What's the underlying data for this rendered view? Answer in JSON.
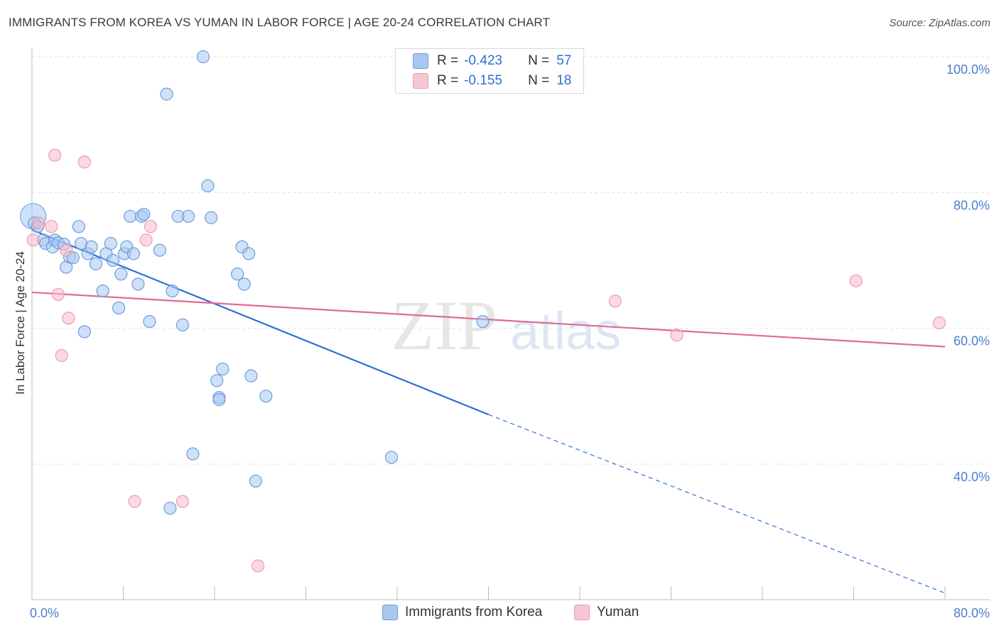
{
  "title": "IMMIGRANTS FROM KOREA VS YUMAN IN LABOR FORCE | AGE 20-24 CORRELATION CHART",
  "source": "Source: ZipAtlas.com",
  "watermark": {
    "zip": "ZIP",
    "atlas": "atlas"
  },
  "legend": {
    "r_label": "R =",
    "n_label": "N =",
    "series": [
      {
        "name": "Immigrants from Korea",
        "r": "-0.423",
        "n": "57",
        "color": "#a8c8f0"
      },
      {
        "name": "Yuman",
        "r": "-0.155",
        "n": "18",
        "color": "#f7b9cb"
      }
    ]
  },
  "chart_data": {
    "type": "scatter",
    "title": "IMMIGRANTS FROM KOREA VS YUMAN IN LABOR FORCE | AGE 20-24 CORRELATION CHART",
    "xlabel": "",
    "ylabel": "In Labor Force | Age 20-24",
    "xlim": [
      0,
      80
    ],
    "ylim": [
      20,
      102
    ],
    "x_tick_labels": [
      "0.0%",
      "80.0%"
    ],
    "y_ticks": [
      40,
      60,
      80,
      100
    ],
    "y_tick_labels": [
      "40.0%",
      "60.0%",
      "80.0%",
      "100.0%"
    ],
    "grid": true,
    "series": [
      {
        "name": "Immigrants from Korea",
        "color": "#4a7fd0",
        "fill": "#a8c8f0",
        "points": [
          [
            0.2,
            75.5
          ],
          [
            0.5,
            75.0
          ],
          [
            1.0,
            73.0
          ],
          [
            1.2,
            72.5
          ],
          [
            1.8,
            72.0
          ],
          [
            2.0,
            73.0
          ],
          [
            2.3,
            72.6
          ],
          [
            2.8,
            72.4
          ],
          [
            3.0,
            69.0
          ],
          [
            3.3,
            70.5
          ],
          [
            3.6,
            70.4
          ],
          [
            4.1,
            75.0
          ],
          [
            4.3,
            72.5
          ],
          [
            4.6,
            59.5
          ],
          [
            4.9,
            71.0
          ],
          [
            5.2,
            72.0
          ],
          [
            5.6,
            69.5
          ],
          [
            6.2,
            65.5
          ],
          [
            6.5,
            71.0
          ],
          [
            6.9,
            72.5
          ],
          [
            7.1,
            70.0
          ],
          [
            7.6,
            63.0
          ],
          [
            7.8,
            68.0
          ],
          [
            8.1,
            71.0
          ],
          [
            8.3,
            72.0
          ],
          [
            8.6,
            76.5
          ],
          [
            8.9,
            71.0
          ],
          [
            9.3,
            66.5
          ],
          [
            9.6,
            76.5
          ],
          [
            9.8,
            76.8
          ],
          [
            10.3,
            61.0
          ],
          [
            11.2,
            71.5
          ],
          [
            11.8,
            94.5
          ],
          [
            12.1,
            33.5
          ],
          [
            12.3,
            65.5
          ],
          [
            12.8,
            76.5
          ],
          [
            13.2,
            60.5
          ],
          [
            13.7,
            76.5
          ],
          [
            14.1,
            41.5
          ],
          [
            15.0,
            100.0
          ],
          [
            15.4,
            81.0
          ],
          [
            15.7,
            76.3
          ],
          [
            16.4,
            49.8
          ],
          [
            16.4,
            49.5
          ],
          [
            16.7,
            54.0
          ],
          [
            16.2,
            52.3
          ],
          [
            18.0,
            68.0
          ],
          [
            18.4,
            72.0
          ],
          [
            18.6,
            66.5
          ],
          [
            19.0,
            71.0
          ],
          [
            19.2,
            53.0
          ],
          [
            19.6,
            37.5
          ],
          [
            20.5,
            50.0
          ],
          [
            31.5,
            41.0
          ],
          [
            39.5,
            61.0
          ]
        ],
        "big_point": [
          0.1,
          76.5
        ],
        "trend": {
          "x0": 0,
          "y0": 74.5,
          "x1": 40,
          "y1": 47.3,
          "x_end": 80,
          "y_end": 21.0
        }
      },
      {
        "name": "Yuman",
        "color": "#e06a94",
        "fill": "#f7b9cb",
        "points": [
          [
            0.1,
            73.0
          ],
          [
            0.6,
            75.5
          ],
          [
            1.7,
            75.0
          ],
          [
            2.0,
            85.5
          ],
          [
            2.3,
            65.0
          ],
          [
            2.6,
            56.0
          ],
          [
            3.0,
            71.5
          ],
          [
            3.2,
            61.5
          ],
          [
            4.6,
            84.5
          ],
          [
            9.0,
            34.5
          ],
          [
            10.0,
            73.0
          ],
          [
            10.4,
            75.0
          ],
          [
            13.2,
            34.5
          ],
          [
            19.8,
            25.0
          ],
          [
            51.1,
            64.0
          ],
          [
            56.5,
            59.0
          ],
          [
            72.2,
            67.0
          ],
          [
            79.5,
            60.8
          ]
        ],
        "trend": {
          "x0": 0,
          "y0": 65.3,
          "x1": 80,
          "y1": 57.3
        }
      }
    ]
  }
}
